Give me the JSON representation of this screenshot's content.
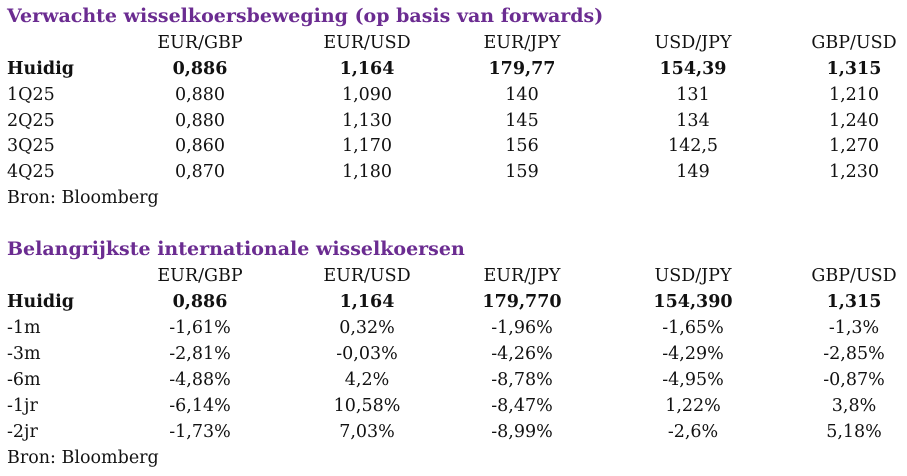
{
  "colors": {
    "title": "#6b2c91",
    "text": "#111111",
    "background": "#ffffff"
  },
  "forwards": {
    "title": "Verwachte wisselkoersbeweging (op basis van forwards)",
    "headers": [
      "EUR/GBP",
      "EUR/USD",
      "EUR/JPY",
      "USD/JPY",
      "GBP/USD"
    ],
    "rows": [
      {
        "label": "Huidig",
        "values": [
          "0,886",
          "1,164",
          "179,77",
          "154,39",
          "1,315"
        ]
      },
      {
        "label": "1Q25",
        "values": [
          "0,880",
          "1,090",
          "140",
          "131",
          "1,210"
        ]
      },
      {
        "label": "2Q25",
        "values": [
          "0,880",
          "1,130",
          "145",
          "134",
          "1,240"
        ]
      },
      {
        "label": "3Q25",
        "values": [
          "0,860",
          "1,170",
          "156",
          "142,5",
          "1,270"
        ]
      },
      {
        "label": "4Q25",
        "values": [
          "0,870",
          "1,180",
          "159",
          "149",
          "1,230"
        ]
      }
    ],
    "source": "Bron: Bloomberg"
  },
  "rates": {
    "title": "Belangrijkste internationale wisselkoersen",
    "headers": [
      "EUR/GBP",
      "EUR/USD",
      "EUR/JPY",
      "USD/JPY",
      "GBP/USD"
    ],
    "rows": [
      {
        "label": "Huidig",
        "values": [
          "0,886",
          "1,164",
          "179,770",
          "154,390",
          "1,315"
        ]
      },
      {
        "label": "-1m",
        "values": [
          "-1,61%",
          "0,32%",
          "-1,96%",
          "-1,65%",
          "-1,3%"
        ]
      },
      {
        "label": "-3m",
        "values": [
          "-2,81%",
          "-0,03%",
          "-4,26%",
          "-4,29%",
          "-2,85%"
        ]
      },
      {
        "label": "-6m",
        "values": [
          "-4,88%",
          "4,2%",
          "-8,78%",
          "-4,95%",
          "-0,87%"
        ]
      },
      {
        "label": "-1jr",
        "values": [
          "-6,14%",
          "10,58%",
          "-8,47%",
          "1,22%",
          "3,8%"
        ]
      },
      {
        "label": "-2jr",
        "values": [
          "-1,73%",
          "7,03%",
          "-8,99%",
          "-2,6%",
          "5,18%"
        ]
      }
    ],
    "source": "Bron: Bloomberg"
  }
}
